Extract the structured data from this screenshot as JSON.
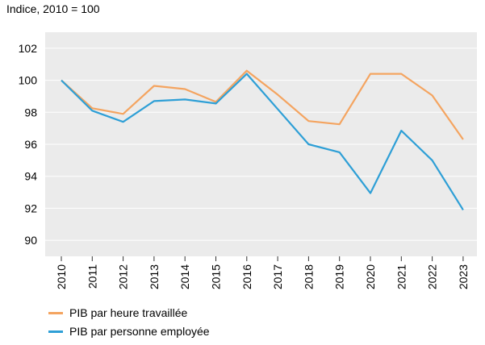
{
  "header": {
    "subtitle": "Indice, 2010 = 100"
  },
  "chart_data": {
    "type": "line",
    "title": "",
    "ylabel": "Indice, 2010 = 100",
    "xlabel": "",
    "ylim": [
      89,
      103
    ],
    "yticks": [
      90,
      92,
      94,
      96,
      98,
      100,
      102
    ],
    "grid": true,
    "legend_position": "bottom",
    "x": [
      "2010",
      "2011",
      "2012",
      "2013",
      "2014",
      "2015",
      "2016",
      "2017",
      "2018",
      "2019",
      "2020",
      "2021",
      "2022",
      "2023"
    ],
    "series": [
      {
        "name": "PIB par heure travaillée",
        "color": "#f4a460",
        "values": [
          100.0,
          98.25,
          97.9,
          99.65,
          99.45,
          98.65,
          100.6,
          99.1,
          97.45,
          97.25,
          100.4,
          100.4,
          99.05,
          96.3
        ]
      },
      {
        "name": "PIB par personne employée",
        "color": "#2e9fd6",
        "values": [
          100.0,
          98.1,
          97.4,
          98.7,
          98.8,
          98.55,
          100.4,
          98.2,
          96.0,
          95.5,
          92.95,
          96.85,
          95.0,
          91.9
        ]
      }
    ]
  },
  "colors": {
    "background": "#ebebeb",
    "grid": "#ffffff"
  }
}
